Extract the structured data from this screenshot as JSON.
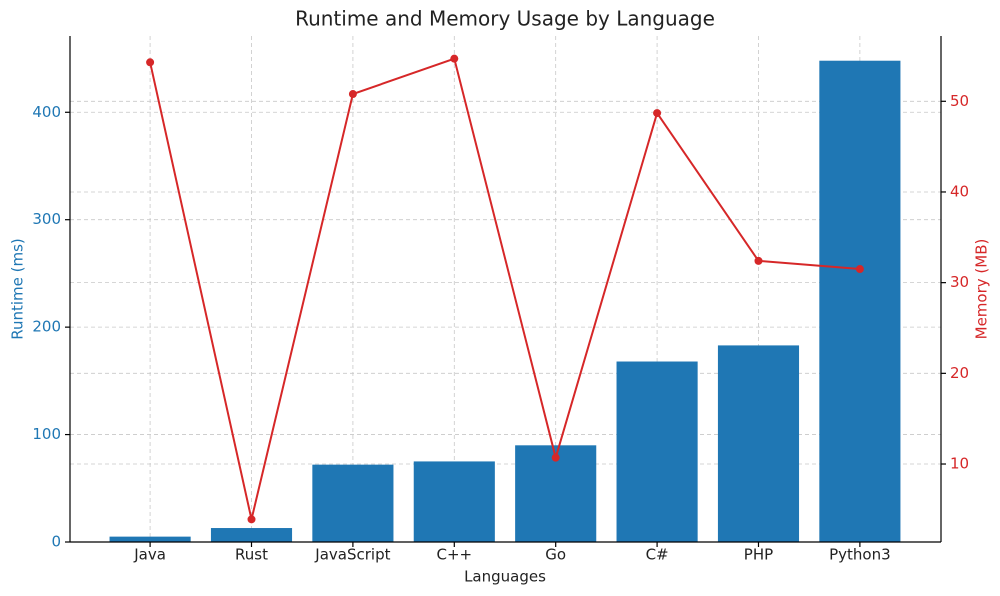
{
  "chart_data": {
    "type": "bar",
    "title": "Runtime and Memory Usage by Language",
    "x_label": "Languages",
    "y_label": "Runtime (ms)",
    "y2_label": "Memory (MB)",
    "categories": [
      "Java",
      "Rust",
      "JavaScript",
      "C++",
      "Go",
      "C#",
      "PHP",
      "Python3"
    ],
    "series": [
      {
        "type": "bar",
        "color": "#1f77b4",
        "values": [
          5,
          13,
          72,
          75,
          90,
          168,
          183,
          448
        ]
      },
      {
        "type": "line",
        "axis": "y2",
        "color": "#d62728",
        "values": [
          54.3,
          3.9,
          50.8,
          54.7,
          10.7,
          48.7,
          32.4,
          31.5
        ]
      }
    ],
    "ylim": [
      0,
      471
    ],
    "yticks": [
      0,
      100,
      200,
      300,
      400
    ],
    "y2lim": [
      1.4,
      57.2
    ],
    "y2ticks": [
      10,
      20,
      30,
      40,
      50
    ],
    "grid": true
  }
}
